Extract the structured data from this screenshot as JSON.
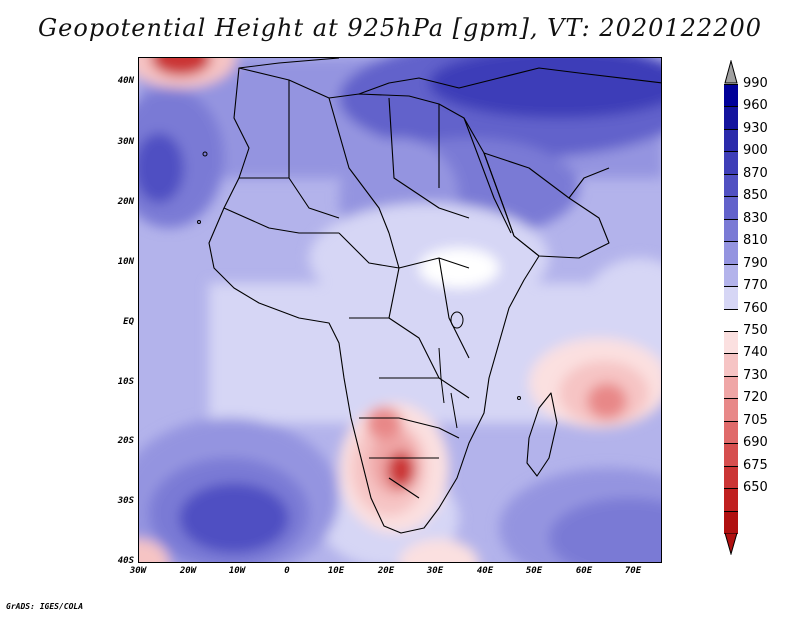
{
  "title": "Geopotential Height at 925hPa [gpm], VT: 2020122200",
  "credit": "GrADS: IGES/COLA",
  "lat_labels": [
    "40N",
    "30N",
    "20N",
    "10N",
    "EQ",
    "10S",
    "20S",
    "30S",
    "40S"
  ],
  "lon_labels": [
    "30W",
    "20W",
    "10W",
    "0",
    "10E",
    "20E",
    "30E",
    "40E",
    "50E",
    "60E",
    "70E"
  ],
  "colorbar": {
    "labels": [
      "990",
      "960",
      "930",
      "900",
      "870",
      "850",
      "830",
      "810",
      "790",
      "770",
      "760",
      "750",
      "740",
      "730",
      "720",
      "705",
      "690",
      "675",
      "650"
    ],
    "colors": [
      "#000099",
      "#14149e",
      "#2a2aab",
      "#3e3eb8",
      "#5050c2",
      "#6262cb",
      "#7a7ad5",
      "#9494e0",
      "#b3b3eb",
      "#d6d6f5",
      "#ffffff",
      "#fbe0e0",
      "#f6c4c4",
      "#efa6a6",
      "#e88888",
      "#e06a6a",
      "#d64e4e",
      "#cb3535",
      "#c02020",
      "#b01010"
    ],
    "over_color": "#a0a0a0",
    "under_color": "#b01010"
  }
}
